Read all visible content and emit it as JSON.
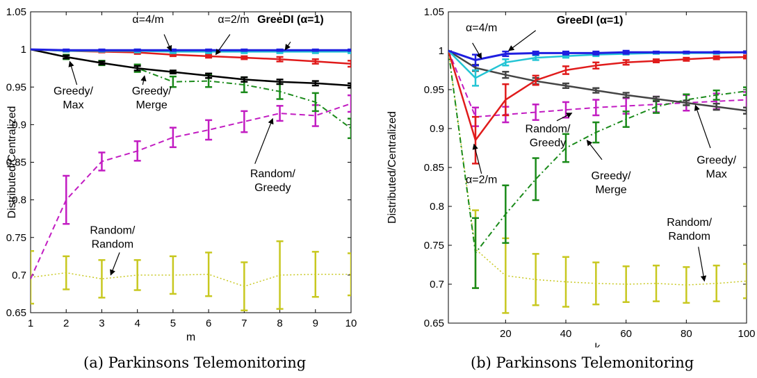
{
  "chart_data": [
    {
      "type": "line",
      "caption": "(a) Parkinsons Telemonitoring",
      "xlabel": "m",
      "ylabel": "Distributed/Centralized",
      "xlim": [
        1,
        10
      ],
      "ylim": [
        0.65,
        1.05
      ],
      "xticks": [
        1,
        2,
        3,
        4,
        5,
        6,
        7,
        8,
        9,
        10
      ],
      "yticks": [
        0.65,
        0.7,
        0.75,
        0.8,
        0.85,
        0.9,
        0.95,
        1,
        1.05
      ],
      "ytick_labels": [
        "0.65",
        "0.7",
        "0.75",
        "0.8",
        "0.85",
        "0.9",
        "0.95",
        "1",
        "1.05"
      ],
      "grid": false,
      "series": [
        {
          "id": "greedi",
          "color": "#1f1fe0",
          "dash": "solid",
          "width": 3,
          "x": [
            1,
            2,
            3,
            4,
            5,
            6,
            7,
            8,
            9,
            10
          ],
          "y": [
            1.0,
            0.999,
            0.999,
            0.999,
            0.999,
            0.999,
            0.999,
            0.999,
            0.999,
            0.999
          ],
          "err": [
            0,
            0.001,
            0.001,
            0.001,
            0.001,
            0.001,
            0.001,
            0.001,
            0.001,
            0.001
          ]
        },
        {
          "id": "alpha4",
          "color": "#22c4d4",
          "dash": "solid",
          "width": 2.5,
          "x": [
            1,
            2,
            3,
            4,
            5,
            6,
            7,
            8,
            9,
            10
          ],
          "y": [
            1.0,
            0.998,
            0.998,
            0.998,
            0.997,
            0.997,
            0.997,
            0.997,
            0.997,
            0.997
          ],
          "err": [
            0,
            0.001,
            0.001,
            0.002,
            0.002,
            0.002,
            0.002,
            0.002,
            0.002,
            0.002
          ]
        },
        {
          "id": "alpha2",
          "color": "#e01b1b",
          "dash": "solid",
          "width": 2.5,
          "x": [
            1,
            2,
            3,
            4,
            5,
            6,
            7,
            8,
            9,
            10
          ],
          "y": [
            1.0,
            0.998,
            0.997,
            0.996,
            0.993,
            0.991,
            0.989,
            0.987,
            0.984,
            0.981
          ],
          "err": [
            0,
            0.001,
            0.001,
            0.002,
            0.002,
            0.002,
            0.002,
            0.003,
            0.003,
            0.004
          ]
        },
        {
          "id": "greedy-max",
          "color": "#000000",
          "dash": "solid",
          "width": 2.5,
          "x": [
            1,
            2,
            3,
            4,
            5,
            6,
            7,
            8,
            9,
            10
          ],
          "y": [
            1.0,
            0.99,
            0.982,
            0.975,
            0.97,
            0.965,
            0.96,
            0.957,
            0.955,
            0.952
          ],
          "err": [
            0,
            0.002,
            0.002,
            0.003,
            0.002,
            0.003,
            0.003,
            0.003,
            0.003,
            0.003
          ]
        },
        {
          "id": "greedy-merge",
          "color": "#1a8a1a",
          "dash": "dashdot",
          "width": 2,
          "x": [
            1,
            2,
            3,
            4,
            5,
            6,
            7,
            8,
            9,
            10
          ],
          "y": [
            1.0,
            0.99,
            0.982,
            0.975,
            0.957,
            0.958,
            0.953,
            0.944,
            0.93,
            0.895
          ],
          "err": [
            0,
            0.003,
            0.003,
            0.005,
            0.007,
            0.008,
            0.01,
            0.01,
            0.012,
            0.013
          ]
        },
        {
          "id": "random-greedy",
          "color": "#c21cc2",
          "dash": "dashed",
          "width": 2,
          "x": [
            1,
            2,
            3,
            4,
            5,
            6,
            7,
            8,
            9,
            10
          ],
          "y": [
            0.695,
            0.8,
            0.851,
            0.865,
            0.883,
            0.893,
            0.904,
            0.915,
            0.912,
            0.928
          ],
          "err": [
            0,
            0.032,
            0.012,
            0.013,
            0.013,
            0.013,
            0.014,
            0.01,
            0.014,
            0.011
          ]
        },
        {
          "id": "random-random",
          "color": "#c8c820",
          "dash": "dotted",
          "width": 1.5,
          "x": [
            1,
            2,
            3,
            4,
            5,
            6,
            7,
            8,
            9,
            10
          ],
          "y": [
            0.697,
            0.703,
            0.695,
            0.7,
            0.7,
            0.701,
            0.685,
            0.7,
            0.701,
            0.701
          ],
          "err": [
            0.035,
            0.022,
            0.025,
            0.02,
            0.025,
            0.029,
            0.032,
            0.045,
            0.03,
            0.028
          ]
        }
      ],
      "annotations": [
        {
          "id": "greedi",
          "lines": [
            "GreeDI (α=1)"
          ],
          "bold": true,
          "x": 8.3,
          "y": 1.035,
          "ax": 8.3,
          "ay": 1.01,
          "tx": 8.15,
          "ty": 0.9995
        },
        {
          "id": "alpha4",
          "lines": [
            "α=4/m"
          ],
          "x": 4.3,
          "y": 1.035,
          "ax": 4.75,
          "ay": 1.02,
          "tx": 4.95,
          "ty": 0.998
        },
        {
          "id": "alpha2",
          "lines": [
            "α=2/m"
          ],
          "x": 6.7,
          "y": 1.035,
          "ax": 6.6,
          "ay": 1.02,
          "tx": 6.2,
          "ty": 0.993
        },
        {
          "id": "greedy-max",
          "lines": [
            "Greedy/",
            "Max"
          ],
          "x": 2.2,
          "y": 0.94,
          "ax": 2.3,
          "ay": 0.953,
          "tx": 2.1,
          "ty": 0.984
        },
        {
          "id": "greedy-merge",
          "lines": [
            "Greedy/",
            "Merge"
          ],
          "x": 4.4,
          "y": 0.94,
          "ax": 4.15,
          "ay": 0.953,
          "tx": 4.2,
          "ty": 0.965
        },
        {
          "id": "random-greedy",
          "lines": [
            "Random/",
            "Greedy"
          ],
          "x": 7.8,
          "y": 0.83,
          "ax": 7.3,
          "ay": 0.848,
          "tx": 7.8,
          "ty": 0.908
        },
        {
          "id": "random-random",
          "lines": [
            "Random/",
            "Random"
          ],
          "x": 3.3,
          "y": 0.755,
          "ax": 3.5,
          "ay": 0.73,
          "tx": 3.25,
          "ty": 0.7
        }
      ]
    },
    {
      "type": "line",
      "caption": "(b) Parkinsons Telemonitoring",
      "xlabel": "k",
      "ylabel": "Distributed/Centralized",
      "xlim": [
        1,
        100
      ],
      "ylim": [
        0.65,
        1.05
      ],
      "xticks": [
        20,
        40,
        60,
        80,
        100
      ],
      "yticks": [
        0.65,
        0.7,
        0.75,
        0.8,
        0.85,
        0.9,
        0.95,
        1,
        1.05
      ],
      "ytick_labels": [
        "0.65",
        "0.7",
        "0.75",
        "0.8",
        "0.85",
        "0.9",
        "0.95",
        "1",
        "1.05"
      ],
      "grid": false,
      "series": [
        {
          "id": "greedi",
          "color": "#1f1fe0",
          "dash": "solid",
          "width": 3,
          "x": [
            1,
            10,
            20,
            30,
            40,
            50,
            60,
            70,
            80,
            90,
            100
          ],
          "y": [
            1.0,
            0.988,
            0.996,
            0.997,
            0.997,
            0.997,
            0.998,
            0.998,
            0.998,
            0.998,
            0.998
          ],
          "err": [
            0,
            0.007,
            0.003,
            0.002,
            0.002,
            0.002,
            0.002,
            0.001,
            0.001,
            0.001,
            0.001
          ]
        },
        {
          "id": "alpha4",
          "color": "#22c4d4",
          "dash": "solid",
          "width": 2.5,
          "x": [
            1,
            10,
            20,
            30,
            40,
            50,
            60,
            70,
            80,
            90,
            100
          ],
          "y": [
            1.0,
            0.965,
            0.985,
            0.991,
            0.993,
            0.995,
            0.996,
            0.997,
            0.997,
            0.997,
            0.998
          ],
          "err": [
            0,
            0.01,
            0.004,
            0.003,
            0.002,
            0.002,
            0.001,
            0.001,
            0.001,
            0.001,
            0.001
          ]
        },
        {
          "id": "alpha2",
          "color": "#e01b1b",
          "dash": "solid",
          "width": 2.5,
          "x": [
            1,
            10,
            20,
            30,
            40,
            50,
            60,
            70,
            80,
            90,
            100
          ],
          "y": [
            1.0,
            0.885,
            0.937,
            0.962,
            0.975,
            0.981,
            0.985,
            0.987,
            0.989,
            0.991,
            0.992
          ],
          "err": [
            0,
            0.03,
            0.02,
            0.006,
            0.005,
            0.004,
            0.003,
            0.002,
            0.002,
            0.002,
            0.002
          ]
        },
        {
          "id": "greedy-max",
          "color": "#444444",
          "dash": "solid",
          "width": 2.5,
          "x": [
            1,
            10,
            20,
            30,
            40,
            50,
            60,
            70,
            80,
            90,
            100
          ],
          "y": [
            1.0,
            0.978,
            0.969,
            0.961,
            0.955,
            0.949,
            0.943,
            0.938,
            0.933,
            0.928,
            0.923
          ],
          "err": [
            0,
            0.004,
            0.004,
            0.004,
            0.003,
            0.003,
            0.003,
            0.003,
            0.003,
            0.004,
            0.004
          ]
        },
        {
          "id": "greedy-merge",
          "color": "#1a8a1a",
          "dash": "dashdot",
          "width": 2,
          "x": [
            1,
            10,
            20,
            30,
            40,
            50,
            60,
            70,
            80,
            90,
            100
          ],
          "y": [
            1.0,
            0.74,
            0.79,
            0.835,
            0.875,
            0.895,
            0.912,
            0.928,
            0.937,
            0.943,
            0.948
          ],
          "err": [
            0,
            0.045,
            0.037,
            0.027,
            0.018,
            0.013,
            0.01,
            0.008,
            0.007,
            0.006,
            0.005
          ]
        },
        {
          "id": "random-greedy",
          "color": "#c21cc2",
          "dash": "dashed",
          "width": 2,
          "x": [
            1,
            10,
            20,
            30,
            40,
            50,
            60,
            70,
            80,
            90,
            100
          ],
          "y": [
            1.0,
            0.915,
            0.918,
            0.921,
            0.924,
            0.927,
            0.929,
            0.931,
            0.933,
            0.935,
            0.937
          ],
          "err": [
            0,
            0.012,
            0.01,
            0.01,
            0.01,
            0.01,
            0.01,
            0.01,
            0.01,
            0.01,
            0.01
          ]
        },
        {
          "id": "random-random",
          "color": "#c8c820",
          "dash": "dotted",
          "width": 1.5,
          "x": [
            1,
            10,
            20,
            30,
            40,
            50,
            60,
            70,
            80,
            90,
            100
          ],
          "y": [
            1.0,
            0.745,
            0.711,
            0.706,
            0.703,
            0.701,
            0.7,
            0.701,
            0.699,
            0.701,
            0.704
          ],
          "err": [
            0,
            0.05,
            0.048,
            0.033,
            0.032,
            0.027,
            0.023,
            0.023,
            0.023,
            0.023,
            0.022
          ]
        }
      ],
      "annotations": [
        {
          "id": "greedi",
          "lines": [
            "GreeDI (α=1)"
          ],
          "bold": true,
          "x": 48,
          "y": 1.035,
          "ax": 30,
          "ay": 1.026,
          "tx": 21,
          "ty": 1.0
        },
        {
          "id": "alpha4",
          "lines": [
            "α=4/m"
          ],
          "x": 12,
          "y": 1.025,
          "ax": 9,
          "ay": 1.01,
          "tx": 12,
          "ty": 0.99
        },
        {
          "id": "alpha2",
          "lines": [
            "α=2/m"
          ],
          "x": 12,
          "y": 0.83,
          "ax": 12,
          "ay": 0.842,
          "tx": 9.5,
          "ty": 0.88
        },
        {
          "id": "random-greedy",
          "lines": [
            "Random/",
            "Greedy"
          ],
          "x": 34,
          "y": 0.895,
          "ax": 37,
          "ay": 0.91,
          "tx": 42,
          "ty": 0.92
        },
        {
          "id": "greedy-merge",
          "lines": [
            "Greedy/",
            "Merge"
          ],
          "x": 55,
          "y": 0.835,
          "ax": 52,
          "ay": 0.86,
          "tx": 47,
          "ty": 0.885
        },
        {
          "id": "greedy-max",
          "lines": [
            "Greedy/",
            "Max"
          ],
          "x": 90,
          "y": 0.855,
          "ax": 88,
          "ay": 0.875,
          "tx": 83,
          "ty": 0.93
        },
        {
          "id": "random-random",
          "lines": [
            "Random/",
            "Random"
          ],
          "x": 81,
          "y": 0.775,
          "ax": 84,
          "ay": 0.748,
          "tx": 86,
          "ty": 0.704
        }
      ]
    }
  ]
}
